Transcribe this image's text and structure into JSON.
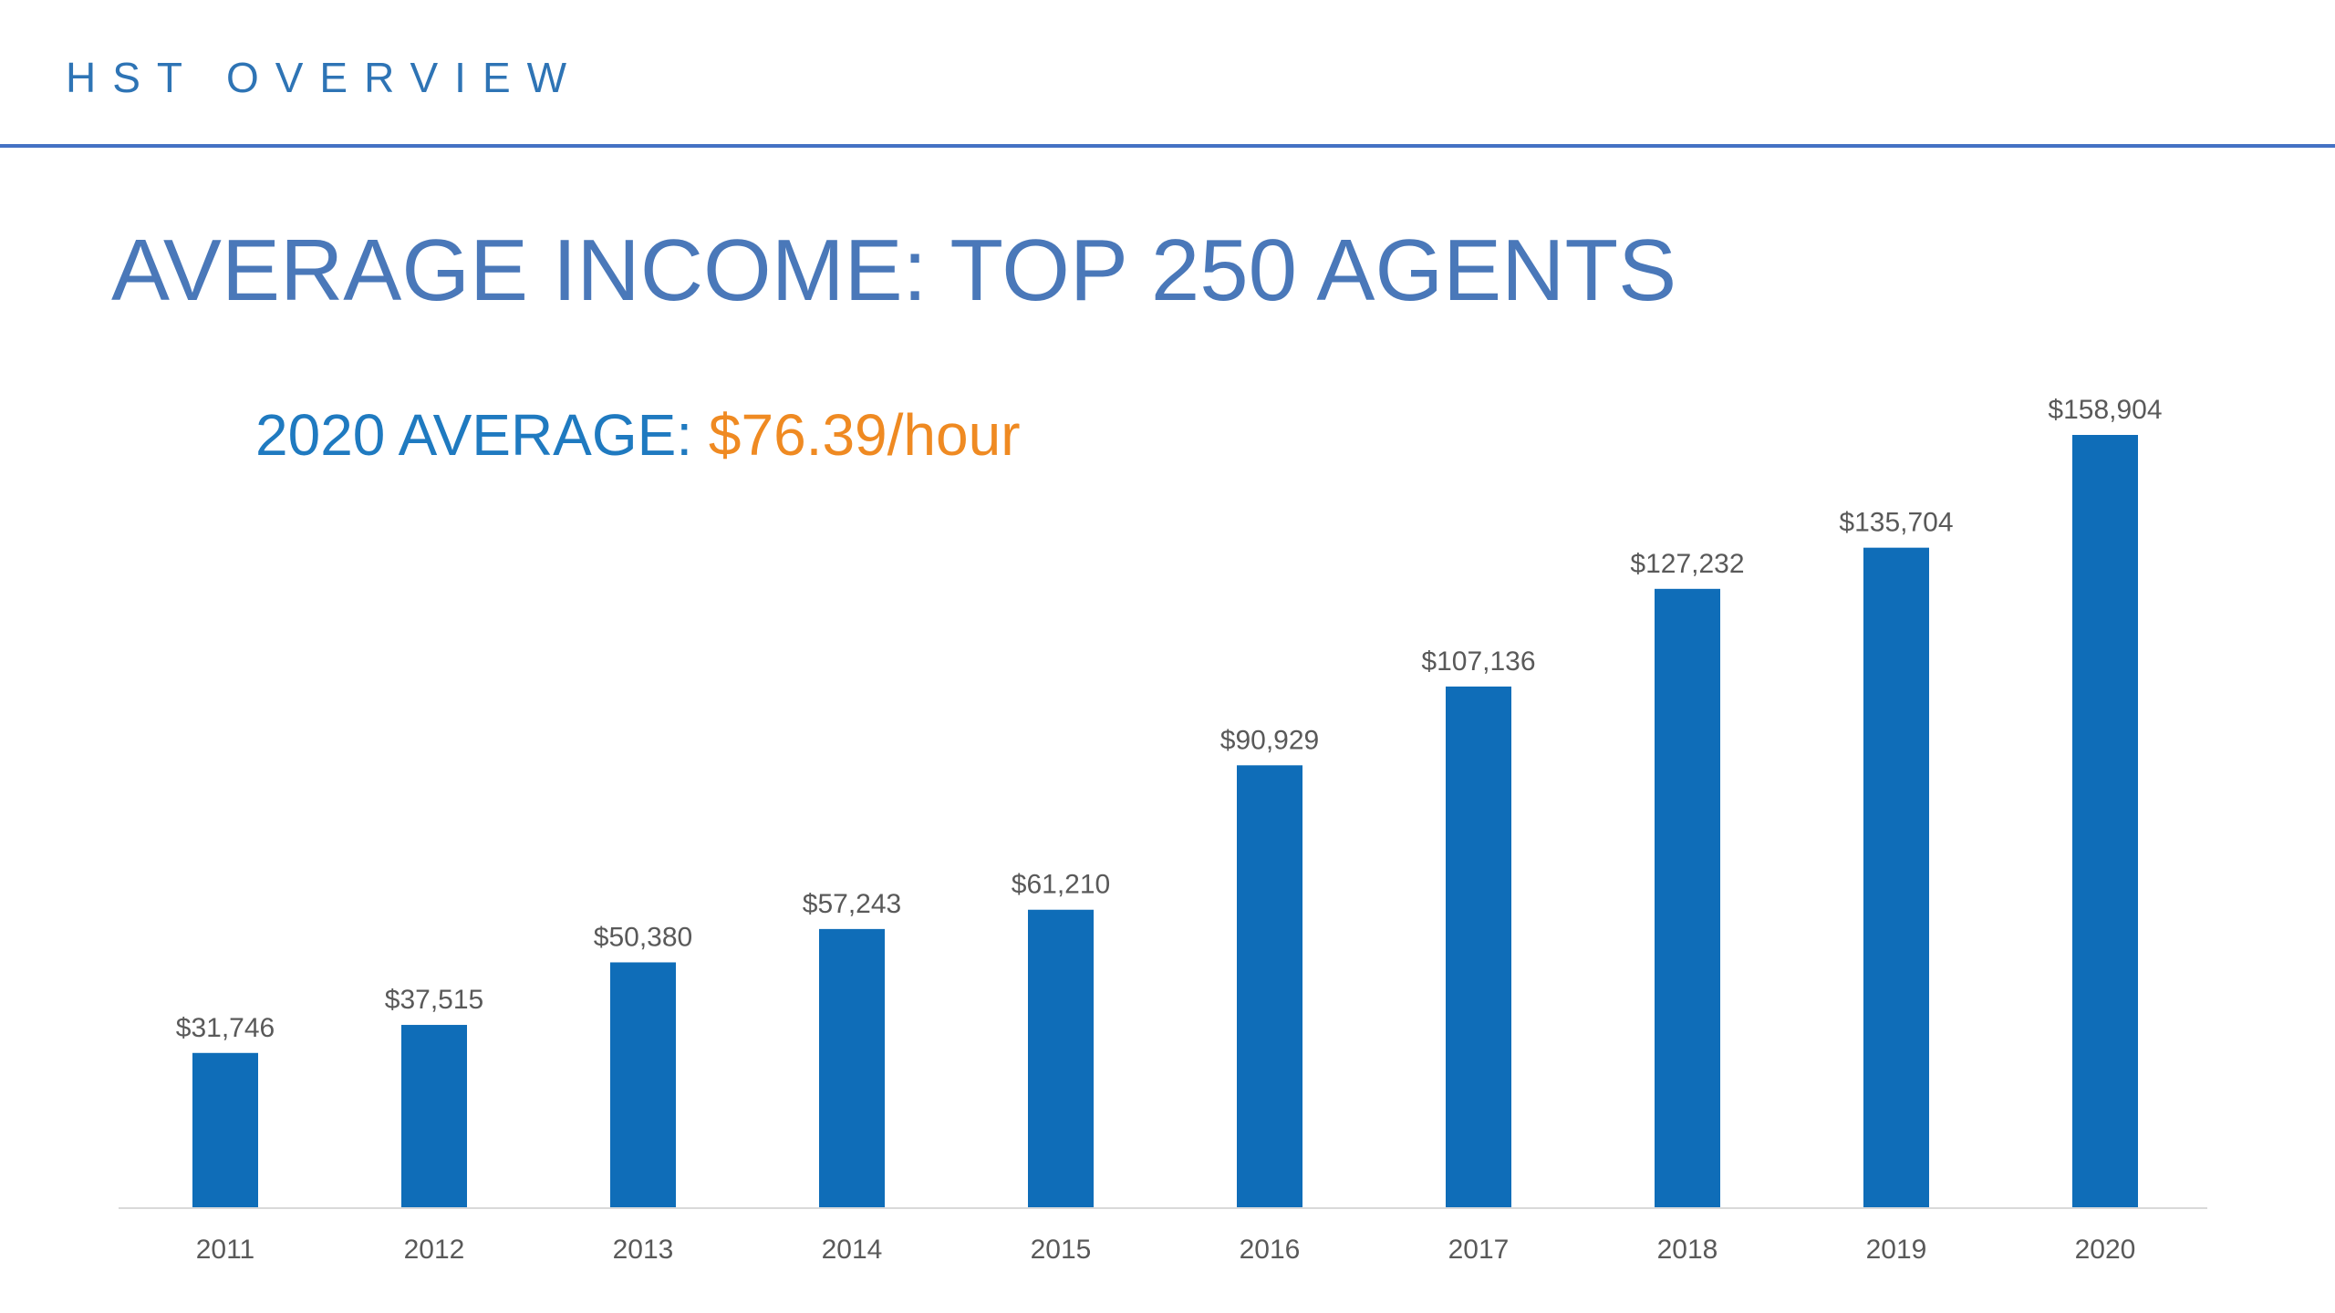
{
  "header": {
    "section_title": "HST OVERVIEW"
  },
  "slide": {
    "title": "AVERAGE INCOME: TOP 250 AGENTS",
    "subtitle_label": "2020 AVERAGE: ",
    "subtitle_value": "$76.39/hour"
  },
  "colors": {
    "header_text": "#2e74b5",
    "title_text": "#4a78b9",
    "subtitle_label": "#1f7ac0",
    "subtitle_value": "#ef8a22",
    "bar": "#0f6db8",
    "data_label": "#595959",
    "axis_label": "#595959",
    "axis_line": "#d9d9d9"
  },
  "chart_data": {
    "type": "bar",
    "categories": [
      "2011",
      "2012",
      "2013",
      "2014",
      "2015",
      "2016",
      "2017",
      "2018",
      "2019",
      "2020"
    ],
    "values": [
      31746,
      37515,
      50380,
      57243,
      61210,
      90929,
      107136,
      127232,
      135704,
      158904
    ],
    "data_labels": [
      "$31,746",
      "$37,515",
      "$50,380",
      "$57,243",
      "$61,210",
      "$90,929",
      "$107,136",
      "$127,232",
      "$135,704",
      "$158,904"
    ],
    "title": "",
    "xlabel": "",
    "ylabel": "",
    "ylim": [
      0,
      158904
    ],
    "grid": false,
    "legend": "none"
  }
}
